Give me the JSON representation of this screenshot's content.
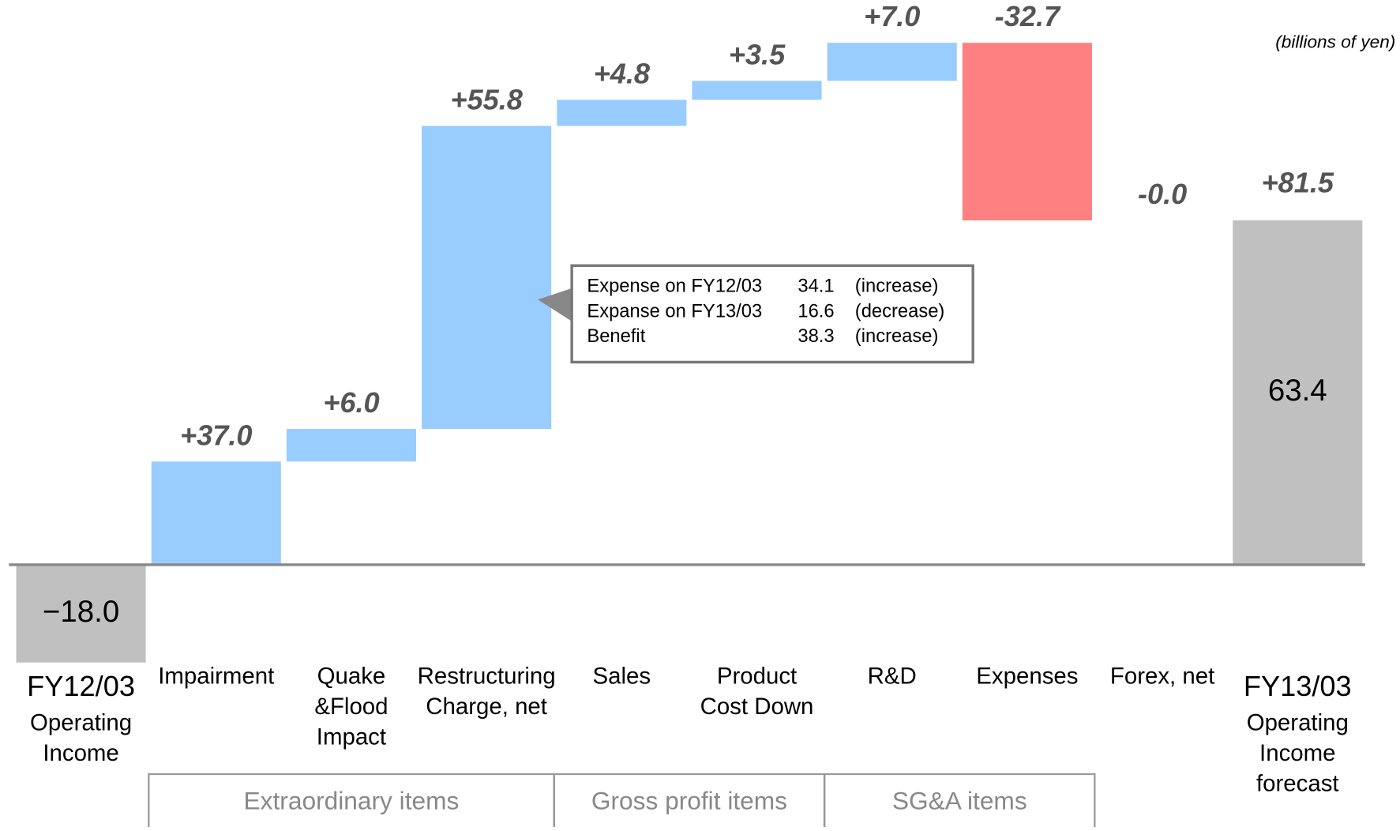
{
  "chart_data": {
    "type": "waterfall",
    "unit_label": "(billions of yen)",
    "categories": [
      [
        "FY12/03",
        "Operating",
        "Income"
      ],
      [
        "Impairment"
      ],
      [
        "Quake",
        "&Flood",
        "Impact"
      ],
      [
        "Restructuring",
        "Charge, net"
      ],
      [
        "Sales"
      ],
      [
        "Product",
        "Cost Down"
      ],
      [
        "R&D"
      ],
      [
        "Expenses"
      ],
      [
        "Forex, net"
      ],
      [
        "FY13/03",
        "Operating",
        "Income",
        "forecast"
      ]
    ],
    "measure": [
      "absolute",
      "relative",
      "relative",
      "relative",
      "relative",
      "relative",
      "relative",
      "relative",
      "relative",
      "absolute"
    ],
    "values": [
      -18.0,
      37.0,
      6.0,
      55.8,
      4.8,
      3.5,
      7.0,
      -32.7,
      -0.0,
      63.4
    ],
    "value_labels": [
      "−18.0",
      "+37.0",
      "+6.0",
      "+55.8",
      "+4.8",
      "+3.5",
      "+7.0",
      "-32.7",
      "-0.0",
      "63.4"
    ],
    "total_change_label": "+81.5",
    "increase_color": "#99ccff",
    "decrease_color": "#ff8080",
    "total_color": "#c0c0c0",
    "ylim": [
      -30,
      100
    ],
    "groups": [
      {
        "label": "Extraordinary items",
        "from": 1,
        "to": 3
      },
      {
        "label": "Gross profit items",
        "from": 4,
        "to": 5
      },
      {
        "label": "SG&A items",
        "from": 6,
        "to": 7
      }
    ],
    "callout": {
      "rows": [
        [
          "Expense on FY12/03",
          "34.1",
          "(increase)"
        ],
        [
          "Expanse on FY13/03",
          "16.6",
          "(decrease)"
        ],
        [
          "Benefit",
          "38.3",
          "(increase)"
        ]
      ]
    }
  }
}
